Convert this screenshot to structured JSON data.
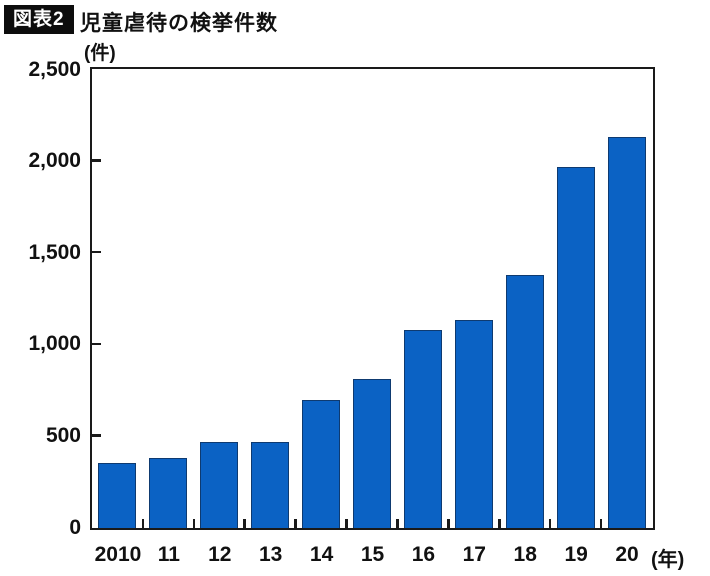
{
  "header": {
    "badge": "図表2",
    "title": "児童虐待の検挙件数"
  },
  "chart_data": {
    "type": "bar",
    "title": "児童虐待の検挙件数",
    "ylabel": "(件)",
    "xlabel": "(年)",
    "categories": [
      "2010",
      "11",
      "12",
      "13",
      "14",
      "15",
      "16",
      "17",
      "18",
      "19",
      "20"
    ],
    "values": [
      354,
      384,
      472,
      467,
      698,
      811,
      1081,
      1138,
      1380,
      1972,
      2133
    ],
    "ylim": [
      0,
      2500
    ],
    "yticks": [
      0,
      500,
      1000,
      1500,
      2000,
      2500
    ],
    "grid": false,
    "legend_position": "none",
    "bar_color": "#0b62c4",
    "bar_outline_color": "#0e3a70",
    "axis_color": "#1a1a1a"
  }
}
